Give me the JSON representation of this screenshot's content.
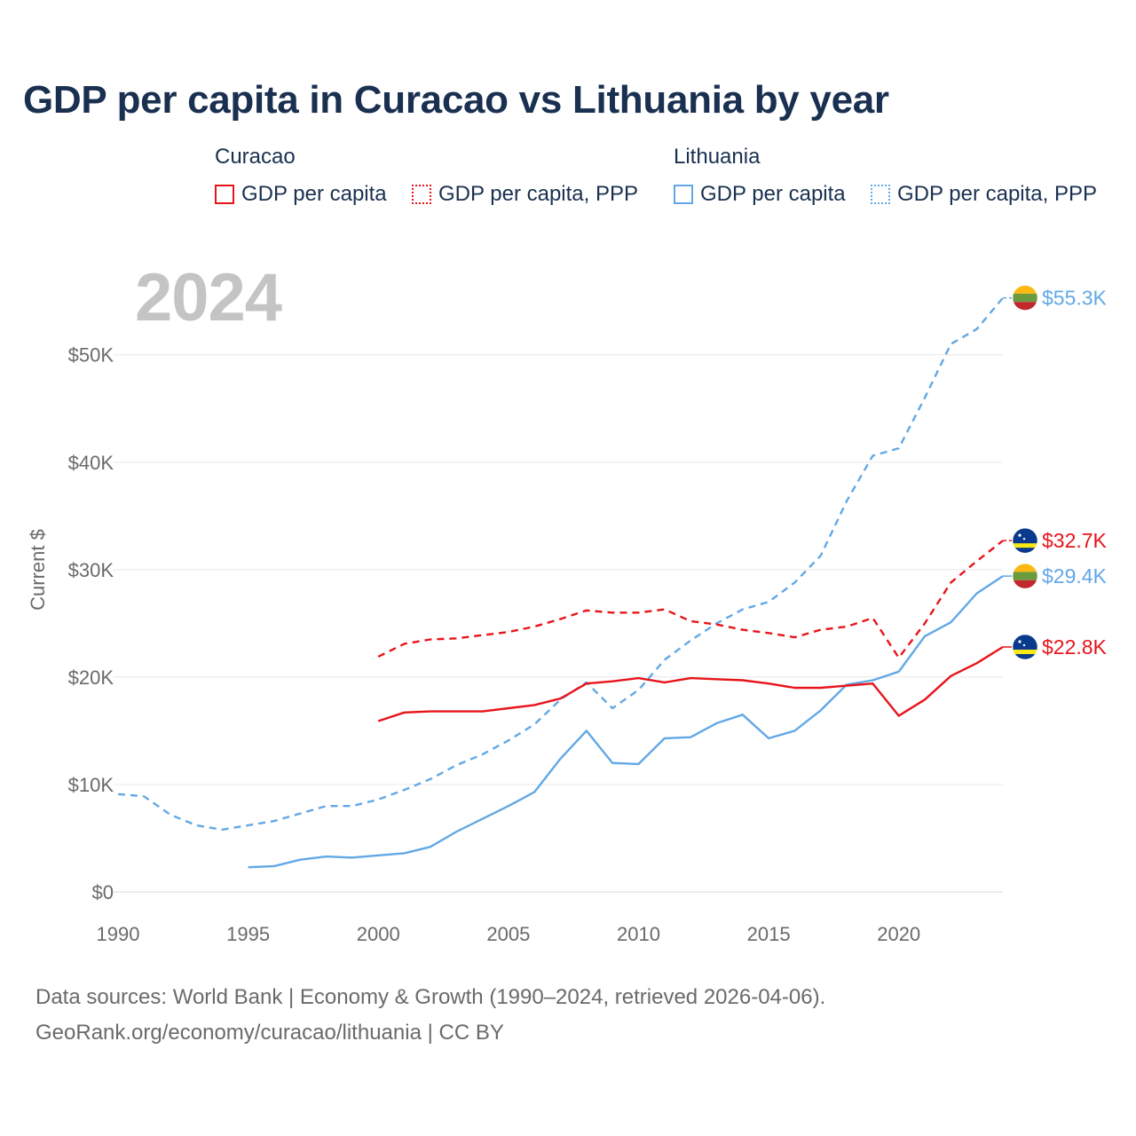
{
  "title": "GDP per capita in Curacao vs Lithuania by year",
  "legend": {
    "groups": [
      {
        "name": "Curacao",
        "color": "#e8141b",
        "items": [
          {
            "label": "GDP per capita",
            "style": "solid"
          },
          {
            "label": "GDP per capita, PPP",
            "style": "dotted"
          }
        ]
      },
      {
        "name": "Lithuania",
        "color": "#62a8e6",
        "items": [
          {
            "label": "GDP per capita",
            "style": "solid"
          },
          {
            "label": "GDP per capita, PPP",
            "style": "dotted"
          }
        ]
      }
    ]
  },
  "year_watermark": "2024",
  "footer": {
    "line1": "Data sources: World Bank | Economy & Growth (1990–2024, retrieved 2026-04-06).",
    "line2": "GeoRank.org/economy/curacao/lithuania | CC BY"
  },
  "chart_data": {
    "type": "line",
    "title": "GDP per capita in Curacao vs Lithuania by year",
    "xlabel": "",
    "ylabel": "Current $",
    "xlim": [
      1990,
      2024
    ],
    "ylim": [
      0,
      57000
    ],
    "x_ticks": [
      1990,
      1995,
      2000,
      2005,
      2010,
      2015,
      2020
    ],
    "x_tick_labels": [
      "1990",
      "1995",
      "2000",
      "2005",
      "2010",
      "2015",
      "2020"
    ],
    "y_ticks": [
      0,
      10000,
      20000,
      30000,
      40000,
      50000
    ],
    "y_tick_labels": [
      "$0",
      "$10K",
      "$20K",
      "$30K",
      "$40K",
      "$50K"
    ],
    "grid": "horizontal",
    "series": [
      {
        "name": "Lithuania GDP per capita, PPP",
        "country": "Lithuania",
        "color": "#62a8e6",
        "dashed": true,
        "x": [
          1990,
          1991,
          1992,
          1993,
          1994,
          1995,
          1996,
          1997,
          1998,
          1999,
          2000,
          2001,
          2002,
          2003,
          2004,
          2005,
          2006,
          2007,
          2008,
          2009,
          2010,
          2011,
          2012,
          2013,
          2014,
          2015,
          2016,
          2017,
          2018,
          2019,
          2020,
          2021,
          2022,
          2023,
          2024
        ],
        "values": [
          9100,
          8900,
          7200,
          6200,
          5800,
          6200,
          6600,
          7300,
          8000,
          8000,
          8600,
          9500,
          10500,
          11800,
          12800,
          14100,
          15600,
          17900,
          19500,
          17100,
          18800,
          21600,
          23400,
          25000,
          26300,
          27000,
          28800,
          31300,
          36400,
          40600,
          41300,
          46000,
          51000,
          52400,
          55300
        ],
        "end_label": "$55.3K"
      },
      {
        "name": "Curacao GDP per capita, PPP",
        "country": "Curacao",
        "color": "#e8141b",
        "dashed": true,
        "x": [
          2000,
          2001,
          2002,
          2003,
          2004,
          2005,
          2006,
          2007,
          2008,
          2009,
          2010,
          2011,
          2012,
          2013,
          2014,
          2015,
          2016,
          2017,
          2018,
          2019,
          2020,
          2021,
          2022,
          2023,
          2024
        ],
        "values": [
          21900,
          23100,
          23500,
          23600,
          23900,
          24200,
          24700,
          25400,
          26200,
          26000,
          26000,
          26300,
          25200,
          24900,
          24400,
          24100,
          23700,
          24400,
          24700,
          25500,
          21800,
          25000,
          28800,
          30800,
          32700
        ],
        "end_label": "$32.7K"
      },
      {
        "name": "Lithuania GDP per capita",
        "country": "Lithuania",
        "color": "#62a8e6",
        "dashed": false,
        "x": [
          1995,
          1996,
          1997,
          1998,
          1999,
          2000,
          2001,
          2002,
          2003,
          2004,
          2005,
          2006,
          2007,
          2008,
          2009,
          2010,
          2011,
          2012,
          2013,
          2014,
          2015,
          2016,
          2017,
          2018,
          2019,
          2020,
          2021,
          2022,
          2023,
          2024
        ],
        "values": [
          2300,
          2400,
          3000,
          3300,
          3200,
          3400,
          3600,
          4200,
          5600,
          6800,
          8000,
          9300,
          12400,
          15000,
          12000,
          11900,
          14300,
          14400,
          15700,
          16500,
          14300,
          15000,
          16900,
          19300,
          19700,
          20500,
          23800,
          25100,
          27800,
          29400
        ],
        "end_label": "$29.4K"
      },
      {
        "name": "Curacao GDP per capita",
        "country": "Curacao",
        "color": "#e8141b",
        "dashed": false,
        "x": [
          2000,
          2001,
          2002,
          2003,
          2004,
          2005,
          2006,
          2007,
          2008,
          2009,
          2010,
          2011,
          2012,
          2013,
          2014,
          2015,
          2016,
          2017,
          2018,
          2019,
          2020,
          2021,
          2022,
          2023,
          2024
        ],
        "values": [
          15900,
          16700,
          16800,
          16800,
          16800,
          17100,
          17400,
          18000,
          19400,
          19600,
          19900,
          19500,
          19900,
          19800,
          19700,
          19400,
          19000,
          19000,
          19200,
          19400,
          16400,
          17900,
          20100,
          21300,
          22800
        ],
        "end_label": "$22.8K"
      }
    ]
  }
}
